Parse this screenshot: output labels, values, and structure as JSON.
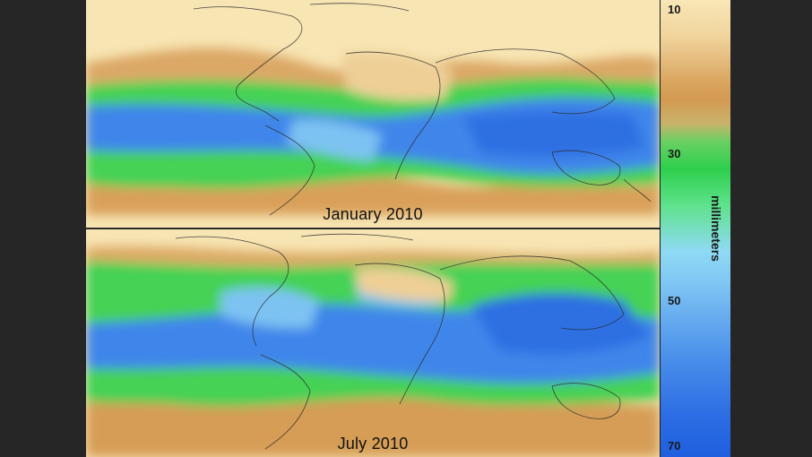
{
  "maps": [
    {
      "label": "January 2010"
    },
    {
      "label": "July 2010"
    }
  ],
  "colorbar": {
    "ticks": [
      "10",
      "30",
      "50",
      "70"
    ],
    "unit_label": "millimeters",
    "colors": [
      "#f8e7b6",
      "#d39a52",
      "#2ecf4d",
      "#8fdaf4",
      "#1f5fdf"
    ]
  }
}
